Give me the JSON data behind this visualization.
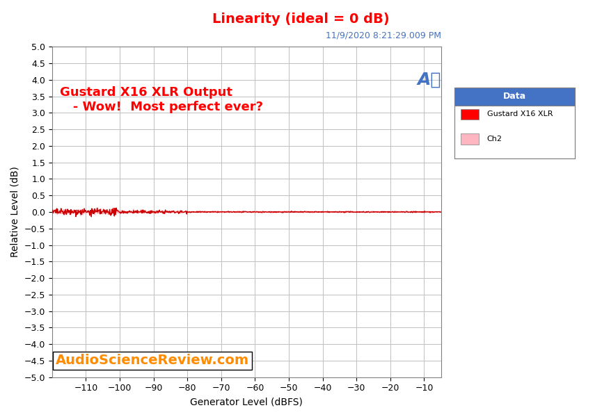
{
  "title": "Linearity (ideal = 0 dB)",
  "title_color": "#FF0000",
  "title_fontsize": 14,
  "xlabel": "Generator Level (dBFS)",
  "ylabel": "Relative Level (dB)",
  "xlim": [
    -120,
    -5
  ],
  "ylim": [
    -5.0,
    5.0
  ],
  "xticks": [
    -110,
    -100,
    -90,
    -80,
    -70,
    -60,
    -50,
    -40,
    -30,
    -20,
    -10
  ],
  "yticks": [
    -5.0,
    -4.5,
    -4.0,
    -3.5,
    -3.0,
    -2.5,
    -2.0,
    -1.5,
    -1.0,
    -0.5,
    0.0,
    0.5,
    1.0,
    1.5,
    2.0,
    2.5,
    3.0,
    3.5,
    4.0,
    4.5,
    5.0
  ],
  "annotation_text": "Gustard X16 XLR Output\n   - Wow!  Most perfect ever?",
  "annotation_color": "#FF0000",
  "annotation_fontsize": 13,
  "timestamp": "11/9/2020 8:21:29.009 PM",
  "timestamp_color": "#4472C4",
  "timestamp_fontsize": 9,
  "watermark_text": "AudioScienceReview.com",
  "watermark_color": "#FF8C00",
  "watermark_fontsize": 14,
  "legend_title": "Data",
  "legend_title_bg": "#4472C4",
  "legend_title_color": "#FFFFFF",
  "legend_entries": [
    "Gustard X16 XLR",
    "Ch2"
  ],
  "legend_colors": [
    "#FF0000",
    "#FFB6C1"
  ],
  "ch1_color": "#CC0000",
  "ch2_color": "#FFB6C1",
  "background_color": "#FFFFFF",
  "plot_bg_color": "#FFFFFF",
  "grid_color": "#C0C0C0",
  "ap_logo_color": "#4472C4"
}
